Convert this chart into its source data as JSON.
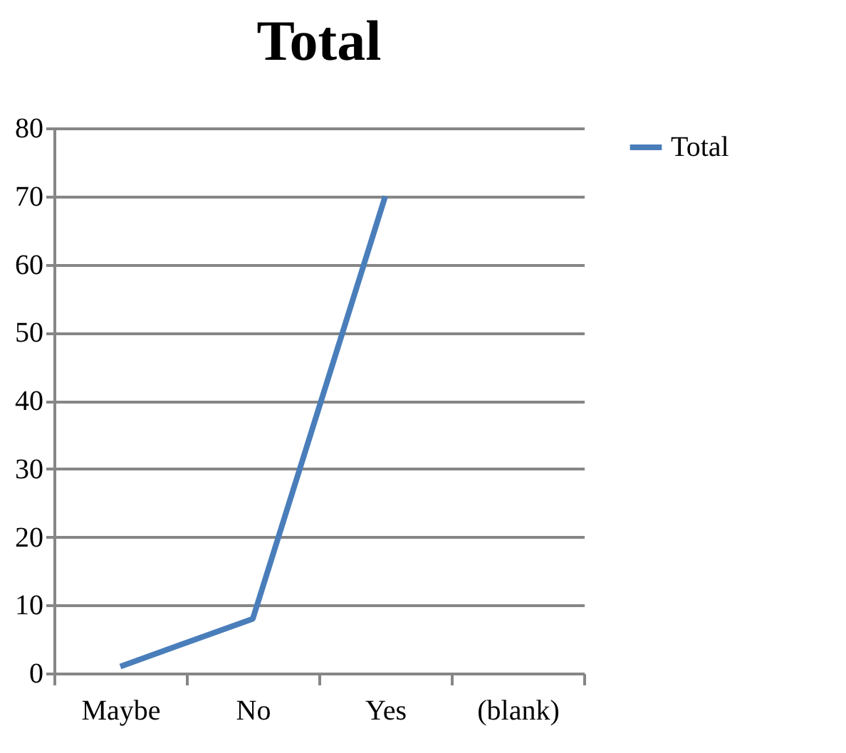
{
  "chart_data": {
    "type": "line",
    "title": "Total",
    "categories": [
      "Maybe",
      "No",
      "Yes",
      "(blank)"
    ],
    "series": [
      {
        "name": "Total",
        "color": "#4a7ebb",
        "values": [
          1,
          8,
          70,
          null
        ]
      }
    ],
    "ylim": [
      0,
      80
    ],
    "yticks": [
      0,
      10,
      20,
      30,
      40,
      50,
      60,
      70,
      80
    ],
    "grid": "y",
    "legend": "right"
  }
}
